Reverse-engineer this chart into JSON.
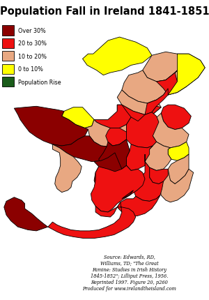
{
  "title": "Population Fall in Ireland 1841-1851",
  "title_fontsize": 10.5,
  "legend_items": [
    {
      "label": "Over 30%",
      "color": "#8B0000"
    },
    {
      "label": "20 to 30%",
      "color": "#EE1111"
    },
    {
      "label": "10 to 20%",
      "color": "#E8A882"
    },
    {
      "label": "0 to 10%",
      "color": "#FFFF00"
    },
    {
      "label": "Population Rise",
      "color": "#1A5C1A"
    }
  ],
  "source_text": "Source: Edwards, RD,\nWilliams, TD; \"The Great\nFamine: Studies in Irish History\n1845-1852\"; Lilliput Press, 1956.\nReprinted 1997. Figure 20, p260\nProduced for www.irelandtheisland.com",
  "bg_color": "#ffffff",
  "sea_color": "#ffffff",
  "border_color": "#000000",
  "fig_bg": "#ffffff",
  "counties": {
    "Donegal": {
      "color": "#FFFF00",
      "cat": "0to10"
    },
    "Londonderry": {
      "color": "#E8A882",
      "cat": "10to20"
    },
    "Antrim": {
      "color": "#E8A882",
      "cat": "10to20"
    },
    "Tyrone": {
      "color": "#E8A882",
      "cat": "10to20"
    },
    "Fermanagh": {
      "color": "#E8A882",
      "cat": "10to20"
    },
    "Armagh": {
      "color": "#EE1111",
      "cat": "20to30"
    },
    "Down": {
      "color": "#FFFF00",
      "cat": "0to10"
    },
    "Monaghan": {
      "color": "#EE1111",
      "cat": "20to30"
    },
    "Cavan": {
      "color": "#EE1111",
      "cat": "20to30"
    },
    "Sligo": {
      "color": "#FFFF00",
      "cat": "0to10"
    },
    "Leitrim": {
      "color": "#EE1111",
      "cat": "20to30"
    },
    "Roscommon": {
      "color": "#E8A882",
      "cat": "10to20"
    },
    "Mayo": {
      "color": "#8B0000",
      "cat": "over30"
    },
    "Galway": {
      "color": "#8B0000",
      "cat": "over30"
    },
    "Louth": {
      "color": "#EE1111",
      "cat": "20to30"
    },
    "Meath": {
      "color": "#E8A882",
      "cat": "10to20"
    },
    "Westmeath": {
      "color": "#EE1111",
      "cat": "20to30"
    },
    "Longford": {
      "color": "#EE1111",
      "cat": "20to30"
    },
    "Dublin": {
      "color": "#FFFF00",
      "cat": "0to10"
    },
    "Kildare": {
      "color": "#E8A882",
      "cat": "10to20"
    },
    "Wicklow": {
      "color": "#E8A882",
      "cat": "10to20"
    },
    "Wexford": {
      "color": "#E8A882",
      "cat": "10to20"
    },
    "Carlow": {
      "color": "#EE1111",
      "cat": "20to30"
    },
    "Kilkenny": {
      "color": "#EE1111",
      "cat": "20to30"
    },
    "Laois": {
      "color": "#EE1111",
      "cat": "20to30"
    },
    "Offaly": {
      "color": "#8B0000",
      "cat": "over30"
    },
    "Tipperary": {
      "color": "#8B0000",
      "cat": "over30"
    },
    "Waterford": {
      "color": "#EE1111",
      "cat": "20to30"
    },
    "Limerick": {
      "color": "#EE1111",
      "cat": "20to30"
    },
    "Clare": {
      "color": "#E8A882",
      "cat": "10to20"
    },
    "Kerry": {
      "color": "#8B0000",
      "cat": "over30"
    },
    "Cork": {
      "color": "#EE1111",
      "cat": "20to30"
    }
  }
}
